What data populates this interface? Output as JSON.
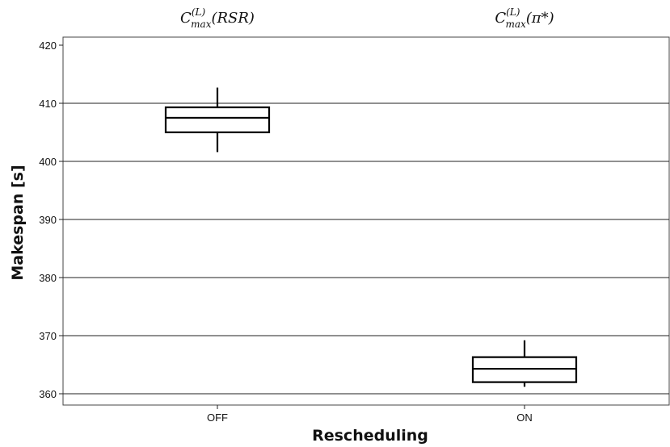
{
  "chart_data": {
    "type": "box",
    "xlabel": "Rescheduling",
    "ylabel": "Makespan [s]",
    "ylim": [
      358,
      421
    ],
    "yticks": [
      360,
      370,
      380,
      390,
      400,
      410,
      420
    ],
    "grid": true,
    "categories": [
      "OFF",
      "ON"
    ],
    "boxes": [
      {
        "category": "OFF",
        "title_base": "C",
        "title_sup": "(L)",
        "title_sub": "max",
        "title_arg": "(RSR)",
        "whisker_low": 401.6,
        "q1": 405.0,
        "median": 407.5,
        "q3": 409.3,
        "whisker_high": 412.7
      },
      {
        "category": "ON",
        "title_base": "C",
        "title_sup": "(L)",
        "title_sub": "max",
        "title_arg": "(π*)",
        "whisker_low": 361.2,
        "q1": 362.0,
        "median": 364.3,
        "q3": 366.3,
        "whisker_high": 369.2
      }
    ]
  }
}
